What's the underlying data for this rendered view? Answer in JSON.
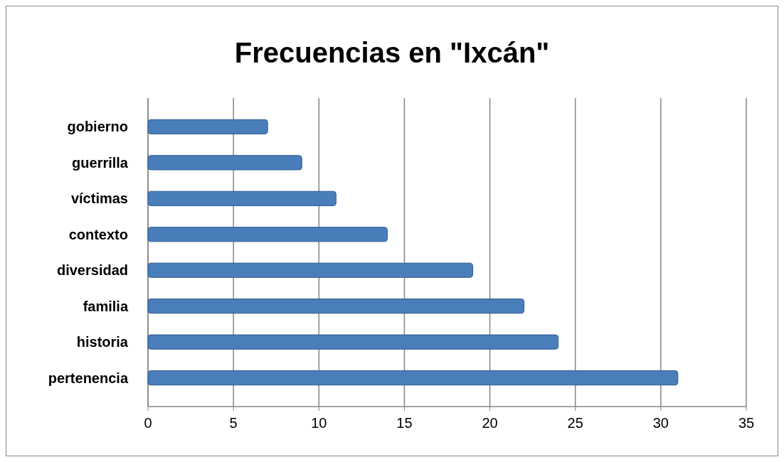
{
  "chart_data": {
    "type": "bar",
    "orientation": "horizontal",
    "title": "Frecuencias en \"Ixcán\"",
    "categories": [
      "gobierno",
      "guerrilla",
      "víctimas",
      "contexto",
      "diversidad",
      "familia",
      "historia",
      "pertenencia"
    ],
    "values": [
      7,
      9,
      11,
      14,
      19,
      22,
      24,
      31
    ],
    "color": "#4a7ebb",
    "xlim": [
      0,
      35
    ],
    "xticks": [
      0,
      5,
      10,
      15,
      20,
      25,
      30,
      35
    ],
    "grid": "x"
  }
}
